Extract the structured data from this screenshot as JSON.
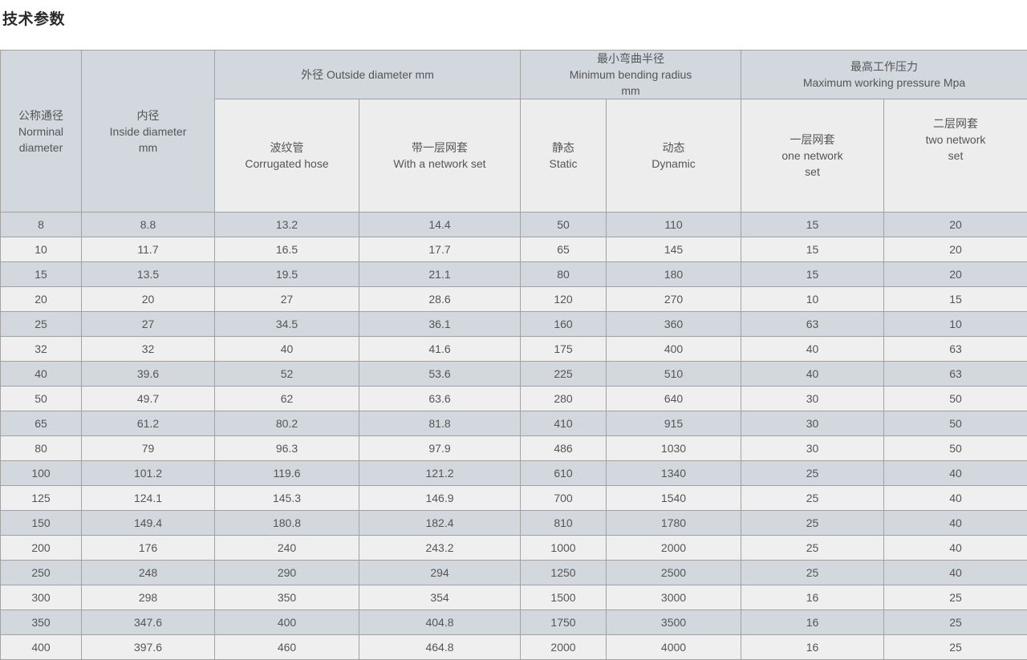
{
  "page": {
    "title": "技术参数"
  },
  "colors": {
    "header_bg": "#d2d8de",
    "subheader_bg": "#ededed",
    "row_alt_bg": "#d2d8de",
    "row_bg": "#efefef",
    "border": "#a2a2a2",
    "outer_border": "#8f8f8f",
    "text": "#555555",
    "title_text": "#2b2b2b"
  },
  "table": {
    "header": {
      "nominal": "公称通径\nNorminal\ndiameter",
      "inside": "内径\nInside diameter\nmm",
      "outside_group": "外径 Outside diameter mm",
      "bending_group": "最小弯曲半径\nMinimum bending radius\nmm",
      "pressure_group": "最高工作压力\nMaximum working pressure Mpa",
      "corrugated": "波纹管\nCorrugated hose",
      "with_network": "带一层网套\nWith a network set",
      "static": "静态\nStatic",
      "dynamic": "动态\nDynamic",
      "one_network": "一层网套\none network\nset",
      "two_network": "二层网套\ntwo network\nset"
    },
    "rows": [
      [
        "8",
        "8.8",
        "13.2",
        "14.4",
        "50",
        "110",
        "15",
        "20"
      ],
      [
        "10",
        "11.7",
        "16.5",
        "17.7",
        "65",
        "145",
        "15",
        "20"
      ],
      [
        "15",
        "13.5",
        "19.5",
        "21.1",
        "80",
        "180",
        "15",
        "20"
      ],
      [
        "20",
        "20",
        "27",
        "28.6",
        "120",
        "270",
        "10",
        "15"
      ],
      [
        "25",
        "27",
        "34.5",
        "36.1",
        "160",
        "360",
        "63",
        "10"
      ],
      [
        "32",
        "32",
        "40",
        "41.6",
        "175",
        "400",
        "40",
        "63"
      ],
      [
        "40",
        "39.6",
        "52",
        "53.6",
        "225",
        "510",
        "40",
        "63"
      ],
      [
        "50",
        "49.7",
        "62",
        "63.6",
        "280",
        "640",
        "30",
        "50"
      ],
      [
        "65",
        "61.2",
        "80.2",
        "81.8",
        "410",
        "915",
        "30",
        "50"
      ],
      [
        "80",
        "79",
        "96.3",
        "97.9",
        "486",
        "1030",
        "30",
        "50"
      ],
      [
        "100",
        "101.2",
        "119.6",
        "121.2",
        "610",
        "1340",
        "25",
        "40"
      ],
      [
        "125",
        "124.1",
        "145.3",
        "146.9",
        "700",
        "1540",
        "25",
        "40"
      ],
      [
        "150",
        "149.4",
        "180.8",
        "182.4",
        "810",
        "1780",
        "25",
        "40"
      ],
      [
        "200",
        "176",
        "240",
        "243.2",
        "1000",
        "2000",
        "25",
        "40"
      ],
      [
        "250",
        "248",
        "290",
        "294",
        "1250",
        "2500",
        "25",
        "40"
      ],
      [
        "300",
        "298",
        "350",
        "354",
        "1500",
        "3000",
        "16",
        "25"
      ],
      [
        "350",
        "347.6",
        "400",
        "404.8",
        "1750",
        "3500",
        "16",
        "25"
      ],
      [
        "400",
        "397.6",
        "460",
        "464.8",
        "2000",
        "4000",
        "16",
        "25"
      ]
    ]
  }
}
